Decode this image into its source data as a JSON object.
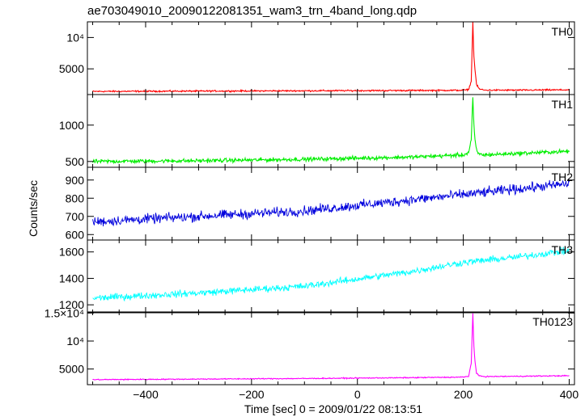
{
  "chart_data": {
    "type": "line",
    "title": "ae703049010_20090122081351_wam3_trn_4band_long.qdp",
    "xlabel": "Time [sec] 0 = 2009/01/22 08:13:51",
    "ylabel": "Counts/sec",
    "xlim": [
      -510,
      410
    ],
    "x_ticks": [
      -400,
      -200,
      0,
      200,
      400
    ],
    "x_tick_labels": [
      "−400",
      "−200",
      "0",
      "200",
      "400"
    ],
    "panels": [
      {
        "name": "TH0",
        "color": "#ff0000",
        "ylim": [
          900,
          12500
        ],
        "yticks": [
          5000,
          10000
        ],
        "ytick_labels": [
          "5000",
          "10⁴"
        ],
        "series": [
          {
            "x": [
              -500,
              -300,
              -100,
              100,
              200,
              210,
              215,
              218,
              220,
              222,
              225,
              230,
              240,
              300,
              400
            ],
            "y": [
              1400,
              1450,
              1500,
              1550,
              1580,
              1700,
              3000,
              12500,
              7000,
              5000,
              2500,
              1800,
              1600,
              1600,
              1650
            ]
          }
        ]
      },
      {
        "name": "TH1",
        "color": "#00ee00",
        "ylim": [
          420,
          1420
        ],
        "yticks": [
          500,
          1000
        ],
        "ytick_labels": [
          "500",
          "1000"
        ],
        "series": [
          {
            "x": [
              -500,
              -300,
              -100,
              100,
              200,
              210,
              215,
              218,
              220,
              222,
              225,
              230,
              240,
              300,
              400
            ],
            "y": [
              500,
              510,
              530,
              560,
              590,
              620,
              800,
              1380,
              1000,
              800,
              650,
              600,
              590,
              610,
              640
            ]
          }
        ]
      },
      {
        "name": "TH2",
        "color": "#0000dd",
        "ylim": [
          570,
          970
        ],
        "yticks": [
          600,
          700,
          800,
          900
        ],
        "ytick_labels": [
          "600",
          "700",
          "800",
          "900"
        ],
        "series": [
          {
            "x": [
              -500,
              -300,
              -100,
              100,
              200,
              300,
              400
            ],
            "y": [
              670,
              700,
              730,
              790,
              820,
              850,
              880
            ]
          }
        ]
      },
      {
        "name": "TH3",
        "color": "#00ffff",
        "ylim": [
          1140,
          1690
        ],
        "yticks": [
          1200,
          1400,
          1600
        ],
        "ytick_labels": [
          "1200",
          "1400",
          "1600"
        ],
        "series": [
          {
            "x": [
              -500,
              -300,
              -100,
              100,
              200,
              300,
              400
            ],
            "y": [
              1250,
              1290,
              1340,
              1450,
              1520,
              1560,
              1610
            ]
          }
        ]
      },
      {
        "name": "TH0123",
        "color": "#ff00ff",
        "ylim": [
          2200,
          15200
        ],
        "yticks": [
          5000,
          10000,
          15000
        ],
        "ytick_labels": [
          "5000",
          "10⁴",
          "1.5×10⁴"
        ],
        "series": [
          {
            "x": [
              -500,
              -300,
              -100,
              100,
              200,
              210,
              215,
              218,
              220,
              222,
              225,
              230,
              240,
              300,
              400
            ],
            "y": [
              3100,
              3200,
              3300,
              3450,
              3550,
              3700,
              6000,
              15000,
              9000,
              6500,
              4200,
              3800,
              3650,
              3700,
              3800
            ]
          }
        ]
      }
    ]
  }
}
